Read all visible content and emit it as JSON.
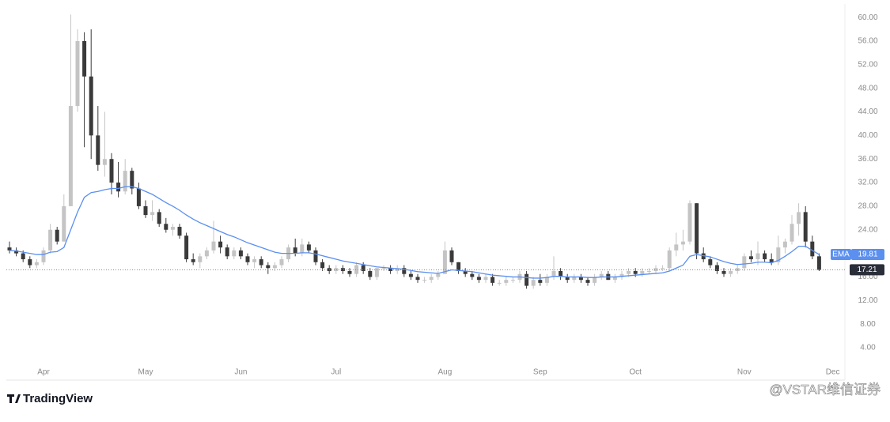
{
  "chart_data": {
    "type": "candlestick",
    "categories": [
      null,
      null,
      null,
      null,
      null,
      "Apr",
      null,
      null,
      null,
      null,
      null,
      null,
      null,
      null,
      null,
      null,
      null,
      null,
      null,
      null,
      "May",
      null,
      null,
      null,
      null,
      null,
      null,
      null,
      null,
      null,
      null,
      null,
      null,
      null,
      "Jun",
      null,
      null,
      null,
      null,
      null,
      null,
      null,
      null,
      null,
      null,
      null,
      null,
      null,
      "Jul",
      null,
      null,
      null,
      null,
      null,
      null,
      null,
      null,
      null,
      null,
      null,
      null,
      null,
      null,
      null,
      "Aug",
      null,
      null,
      null,
      null,
      null,
      null,
      null,
      null,
      null,
      null,
      null,
      null,
      null,
      "Sep",
      null,
      null,
      null,
      null,
      null,
      null,
      null,
      null,
      null,
      null,
      null,
      null,
      null,
      "Oct",
      null,
      null,
      null,
      null,
      null,
      null,
      null,
      null,
      null,
      null,
      null,
      null,
      null,
      null,
      null,
      "Nov",
      null,
      null,
      null,
      null,
      null,
      null,
      null,
      null,
      null,
      null,
      null,
      null,
      "Dec"
    ],
    "open": [
      21,
      20.5,
      20,
      19,
      18,
      18.5,
      20.5,
      24,
      22,
      28,
      45,
      56,
      50,
      40,
      35,
      36,
      32,
      30.5,
      34,
      31,
      28,
      26.5,
      27,
      25,
      24,
      24.5,
      23,
      19,
      18.5,
      19.5,
      20.5,
      22,
      21,
      19.5,
      20.5,
      19.5,
      18.5,
      19,
      18,
      17.5,
      18,
      19,
      21,
      20,
      21.5,
      20.5,
      18.5,
      17.5,
      17,
      17.5,
      17,
      16.5,
      18,
      17,
      16,
      17.5,
      17.5,
      17,
      17.5,
      16.5,
      16,
      15.5,
      15.5,
      16,
      16.5,
      20.5,
      18.5,
      17,
      16.5,
      16,
      15.5,
      16,
      15,
      15,
      15.5,
      15.5,
      16.5,
      14.5,
      15.5,
      15,
      16,
      17,
      16,
      15.5,
      16,
      15.5,
      15,
      16,
      16.5,
      15.5,
      16,
      16.5,
      17,
      16.5,
      17,
      17,
      17.5,
      17.5,
      20.5,
      21.5,
      22,
      28.5,
      20,
      19,
      18,
      17,
      16.5,
      17,
      17.5,
      19.5,
      19,
      20,
      19,
      18.5,
      21,
      22,
      25,
      27,
      22,
      19.5,
      null,
      null
    ],
    "high": [
      22,
      21,
      20.5,
      19.5,
      19,
      21,
      25,
      24.5,
      30,
      60.5,
      58,
      57.5,
      58,
      45,
      44,
      37,
      35.5,
      36,
      34.5,
      32,
      29,
      29,
      27.5,
      26,
      25,
      25,
      23.5,
      20,
      20,
      21,
      25.5,
      23,
      21.5,
      21,
      21,
      20,
      19.5,
      19.5,
      18.5,
      18.5,
      19.5,
      21.5,
      22.5,
      22.5,
      22,
      21,
      19,
      18,
      18,
      18,
      17.5,
      18.5,
      18.5,
      17.5,
      17.5,
      18,
      18,
      18,
      18,
      17,
      16.5,
      16,
      16.5,
      17,
      22,
      21,
      18.5,
      17.5,
      17,
      16.5,
      16.5,
      16.5,
      15.5,
      16,
      16,
      17,
      17,
      16,
      16.5,
      16.5,
      19.5,
      17.5,
      16.5,
      16.5,
      16.5,
      16,
      16.5,
      17,
      17,
      16.5,
      17,
      17.5,
      17.5,
      17.5,
      17.5,
      18,
      18,
      21,
      23.5,
      24,
      29,
      28.5,
      21,
      19.5,
      18.5,
      17.5,
      17.5,
      18,
      20,
      20.5,
      22,
      20.5,
      20,
      23,
      22.5,
      26.5,
      28.5,
      28,
      23,
      20,
      null,
      null
    ],
    "low": [
      20,
      19.5,
      18.5,
      17.5,
      17.5,
      18,
      20,
      21.5,
      22,
      28,
      44,
      38,
      36,
      34,
      33,
      30,
      29.5,
      30,
      30,
      27.5,
      26,
      25.5,
      24.5,
      23.5,
      23,
      22.5,
      18.5,
      18,
      17.5,
      19,
      20,
      20,
      19,
      19,
      19,
      18,
      17.5,
      17.5,
      16.5,
      17,
      17.5,
      18.5,
      19.5,
      19.5,
      20,
      18,
      17,
      16.5,
      16.5,
      16.5,
      16,
      16,
      16.5,
      15.5,
      15.5,
      17,
      16.5,
      16.5,
      16,
      15.5,
      15,
      15,
      15,
      15.5,
      16.5,
      18,
      16.5,
      16,
      15.5,
      15,
      15,
      14.5,
      14.5,
      14.5,
      15,
      15,
      14,
      14,
      14.5,
      14.5,
      15.5,
      15.5,
      15,
      15,
      15,
      14.5,
      14.5,
      15.5,
      15.5,
      15,
      15.5,
      16,
      16,
      16,
      16.5,
      16.5,
      17,
      17,
      19.5,
      20.5,
      21.5,
      19,
      18.5,
      17.5,
      16.5,
      16,
      16,
      16.5,
      17,
      18.5,
      18,
      18.5,
      18,
      18,
      20,
      21.5,
      23,
      21,
      19,
      17,
      null,
      null
    ],
    "close": [
      20.5,
      20,
      19,
      18,
      18.5,
      20.5,
      24,
      22,
      28,
      45,
      56,
      50,
      40,
      35,
      36,
      32,
      30.5,
      34,
      31,
      28,
      26.5,
      27,
      25,
      24,
      24.5,
      23,
      19,
      18.5,
      19.5,
      20.5,
      22,
      21,
      19.5,
      20.5,
      19.5,
      18.5,
      19,
      18,
      17.5,
      18,
      19,
      21,
      20,
      21.5,
      20.5,
      18.5,
      17.5,
      17,
      17.5,
      17,
      16.5,
      18,
      17,
      16,
      17.5,
      17.5,
      17,
      17.5,
      16.5,
      16,
      15.5,
      15.5,
      16,
      16.5,
      20.5,
      18.5,
      17,
      16.5,
      16,
      15.5,
      16,
      15,
      15,
      15.5,
      15.5,
      16.5,
      14.5,
      15.5,
      15,
      16,
      17,
      16,
      15.5,
      16,
      15.5,
      15,
      16,
      16.5,
      15.5,
      16,
      16.5,
      17,
      16.5,
      17,
      17,
      17.5,
      17.5,
      20.5,
      21.5,
      22,
      28.5,
      20,
      19,
      18,
      17,
      16.5,
      17,
      17.5,
      19.5,
      19,
      20,
      19,
      18.5,
      21,
      22,
      25,
      27,
      22,
      19.5,
      17.21,
      null,
      null
    ],
    "up_color": "#c4c4c4",
    "down_color": "#3a3a3a",
    "ema": {
      "name": "EMA",
      "color": "#5b8ff0",
      "values": [
        20.5,
        20.4,
        20.2,
        20,
        19.8,
        19.8,
        20.2,
        20.3,
        21,
        24,
        27,
        29.5,
        30.3,
        30.5,
        30.8,
        31,
        31,
        31.3,
        31.3,
        31,
        30.5,
        30,
        29.3,
        28.6,
        28,
        27.3,
        26.5,
        25.8,
        25.2,
        24.7,
        24.2,
        23.7,
        23.2,
        22.8,
        22.3,
        21.8,
        21.4,
        21,
        20.6,
        20.2,
        20,
        20,
        20,
        20.1,
        20.1,
        19.9,
        19.6,
        19.3,
        19,
        18.7,
        18.5,
        18.3,
        18.1,
        17.9,
        17.7,
        17.6,
        17.5,
        17.4,
        17.3,
        17.1,
        16.9,
        16.8,
        16.7,
        16.6,
        16.9,
        17.2,
        17.1,
        17,
        16.9,
        16.7,
        16.5,
        16.3,
        16.2,
        16.1,
        16,
        16,
        15.9,
        15.8,
        15.8,
        15.9,
        16.1,
        16.1,
        16,
        16,
        16,
        15.9,
        15.9,
        16,
        16,
        16,
        16.1,
        16.2,
        16.3,
        16.4,
        16.5,
        16.6,
        16.7,
        17,
        17.5,
        18,
        19.5,
        19.8,
        19.6,
        19.4,
        19,
        18.6,
        18.3,
        18.1,
        18.2,
        18.3,
        18.5,
        18.5,
        18.4,
        18.8,
        19.5,
        20.3,
        21.2,
        21.2,
        20.5,
        19.81,
        null,
        null
      ]
    },
    "ylim": [
      -1.5,
      62.3
    ],
    "yticks": [
      {
        "value": 4,
        "label": "4.00"
      },
      {
        "value": 8,
        "label": "8.00"
      },
      {
        "value": 12,
        "label": "12.00"
      },
      {
        "value": 16,
        "label": "16.00"
      },
      {
        "value": 20,
        "label": "20.00"
      },
      {
        "value": 24,
        "label": "24.00"
      },
      {
        "value": 28,
        "label": "28.00"
      },
      {
        "value": 32,
        "label": "32.00"
      },
      {
        "value": 36,
        "label": "36.00"
      },
      {
        "value": 40,
        "label": "40.00"
      },
      {
        "value": 44,
        "label": "44.00"
      },
      {
        "value": 48,
        "label": "48.00"
      },
      {
        "value": 52,
        "label": "52.00"
      },
      {
        "value": 56,
        "label": "56.00"
      },
      {
        "value": 60,
        "label": "60.00"
      }
    ],
    "grid": false
  },
  "branding": {
    "logo": "TradingView",
    "watermark": "@VSTAR维信证券"
  }
}
